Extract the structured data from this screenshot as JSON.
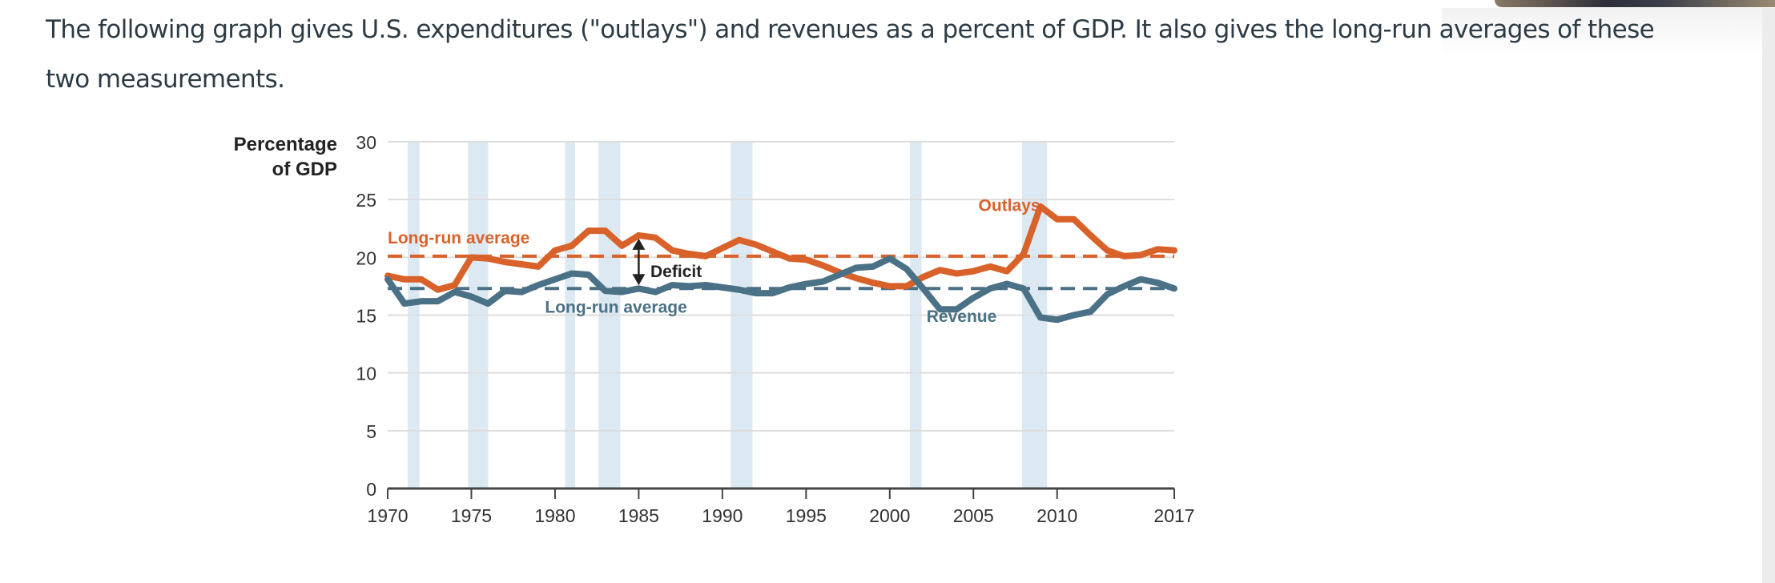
{
  "intro_text": "The following graph gives U.S. expenditures (\"outlays\") and revenues as a percent of GDP. It also gives the long-run averages of these two measurements.",
  "chart_data": {
    "type": "line",
    "title": "",
    "ylabel_lines": [
      "Percentage",
      "of GDP"
    ],
    "xlabel": "",
    "xlim": [
      1970,
      2017
    ],
    "ylim": [
      0,
      30
    ],
    "yticks": [
      0,
      5,
      10,
      15,
      20,
      25,
      30
    ],
    "xticks": [
      1970,
      1975,
      1980,
      1985,
      1990,
      1995,
      2000,
      2005,
      2010,
      2017
    ],
    "grid": "horizontal",
    "colors": {
      "outlays": "#d9622b",
      "revenue": "#4a7185",
      "recession": "#dce9f2",
      "grid": "#dddddd",
      "axis": "#444444"
    },
    "x": [
      1970,
      1971,
      1972,
      1973,
      1974,
      1975,
      1976,
      1977,
      1978,
      1979,
      1980,
      1981,
      1982,
      1983,
      1984,
      1985,
      1986,
      1987,
      1988,
      1989,
      1990,
      1991,
      1992,
      1993,
      1994,
      1995,
      1996,
      1997,
      1998,
      1999,
      2000,
      2001,
      2002,
      2003,
      2004,
      2005,
      2006,
      2007,
      2008,
      2009,
      2010,
      2011,
      2012,
      2013,
      2014,
      2015,
      2016,
      2017
    ],
    "series": [
      {
        "name": "Outlays",
        "values": [
          18.4,
          18.1,
          18.1,
          17.2,
          17.6,
          20.0,
          19.9,
          19.6,
          19.4,
          19.2,
          20.6,
          21.0,
          22.3,
          22.3,
          21.0,
          21.9,
          21.7,
          20.6,
          20.3,
          20.1,
          20.8,
          21.5,
          21.1,
          20.5,
          19.9,
          19.8,
          19.3,
          18.7,
          18.2,
          17.8,
          17.5,
          17.5,
          18.3,
          18.9,
          18.6,
          18.8,
          19.2,
          18.8,
          20.3,
          24.4,
          23.3,
          23.3,
          21.9,
          20.6,
          20.1,
          20.2,
          20.7,
          20.6
        ]
      },
      {
        "name": "Revenue",
        "values": [
          18.1,
          16.0,
          16.2,
          16.2,
          17.0,
          16.6,
          16.0,
          17.1,
          17.0,
          17.6,
          18.1,
          18.6,
          18.5,
          17.1,
          17.0,
          17.3,
          17.0,
          17.6,
          17.5,
          17.6,
          17.4,
          17.2,
          16.9,
          16.9,
          17.4,
          17.7,
          17.9,
          18.5,
          19.1,
          19.2,
          19.9,
          19.0,
          17.3,
          15.5,
          15.5,
          16.5,
          17.3,
          17.7,
          17.3,
          14.8,
          14.6,
          15.0,
          15.3,
          16.8,
          17.5,
          18.1,
          17.8,
          17.3
        ]
      }
    ],
    "reference_lines": [
      {
        "name": "Outlays long-run average",
        "value": 20.1,
        "style": "dashed"
      },
      {
        "name": "Revenue long-run average",
        "value": 17.3,
        "style": "dashed"
      }
    ],
    "recession_bands": [
      [
        1971.2,
        1971.9
      ],
      [
        1974.8,
        1976.0
      ],
      [
        1980.6,
        1981.2
      ],
      [
        1982.6,
        1983.9
      ],
      [
        1990.5,
        1991.8
      ],
      [
        2001.2,
        2001.9
      ],
      [
        2007.9,
        2009.4
      ]
    ],
    "annotations": [
      {
        "text": "Long-run average",
        "series": "outlays",
        "x": 1970,
        "y": 21.2
      },
      {
        "text": "Long-run average",
        "series": "revenue",
        "x": 1979.4,
        "y": 15.2
      },
      {
        "text": "Deficit",
        "series": "deficit",
        "x": 1985.7,
        "y": 18.3
      },
      {
        "text": "Outlays",
        "series": "outlays",
        "x": 2005.3,
        "y": 24.0
      },
      {
        "text": "Revenue",
        "series": "revenue",
        "x": 2002.2,
        "y": 14.4
      }
    ],
    "deficit_arrow": {
      "x": 1985,
      "y_top": 21.9,
      "y_bottom": 17.3
    }
  }
}
